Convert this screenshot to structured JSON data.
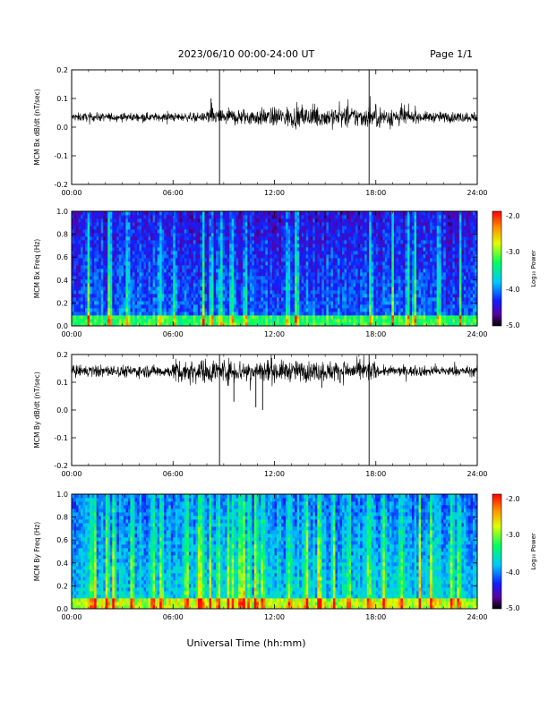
{
  "header": {
    "title": "2023/06/10  00:00-24:00 UT",
    "page": "Page 1/1"
  },
  "footer": {
    "xlabel": "Universal Time (hh:mm)"
  },
  "colorbar": {
    "label": "Log₁₀ Power",
    "ticks": [
      "-2.0",
      "-3.0",
      "-4.0",
      "-5.0"
    ],
    "range": [
      -5,
      -2
    ]
  },
  "chart_data": [
    {
      "type": "line",
      "ylabel": "MCM Bx dB/dt (nT/sec)",
      "xlim": [
        0,
        24
      ],
      "ylim": [
        -0.2,
        0.2
      ],
      "xticks": [
        "00:00",
        "06:00",
        "12:00",
        "18:00",
        "24:00"
      ],
      "yticks": [
        "0.2",
        "0.1",
        "0.0",
        "-0.1",
        "-0.2"
      ],
      "baseline": 0.035,
      "spikes": [
        {
          "x": 8.25,
          "y": 0.1
        },
        {
          "x": 8.75,
          "y": -0.2
        },
        {
          "x": 8.75,
          "y": 0.2
        },
        {
          "x": 17.6,
          "y": -0.2
        },
        {
          "x": 17.6,
          "y": 0.2
        }
      ],
      "activity_windows": [
        {
          "from": 0,
          "to": 8,
          "amp": 0.012
        },
        {
          "from": 8,
          "to": 12,
          "amp": 0.025
        },
        {
          "from": 12,
          "to": 20,
          "amp": 0.03
        },
        {
          "from": 20,
          "to": 24,
          "amp": 0.015
        }
      ]
    },
    {
      "type": "heatmap",
      "ylabel": "MCM Bx Freq (Hz)",
      "xlim": [
        0,
        24
      ],
      "ylim": [
        0,
        1
      ],
      "xticks": [
        "00:00",
        "06:00",
        "12:00",
        "18:00",
        "24:00"
      ],
      "yticks": [
        "1.0",
        "0.8",
        "0.6",
        "0.4",
        "0.2",
        "0.0"
      ],
      "background_level": -4.3,
      "bright_columns": [
        1.0,
        2.2,
        2.3,
        3.3,
        5.2,
        6.1,
        7.8,
        8.3,
        8.8,
        9.5,
        10.3,
        12.8,
        13.3,
        17.7,
        19.0,
        19.9,
        20.3,
        21.7,
        23.0
      ]
    },
    {
      "type": "line",
      "ylabel": "MCM By dB/dt (nT/sec)",
      "xlim": [
        0,
        24
      ],
      "ylim": [
        -0.2,
        0.2
      ],
      "xticks": [
        "00:00",
        "06:00",
        "12:00",
        "18:00",
        "24:00"
      ],
      "yticks": [
        "0.2",
        "0.1",
        "0.0",
        "-0.1",
        "-0.2"
      ],
      "baseline": 0.14,
      "spikes": [
        {
          "x": 8.75,
          "y": -0.2
        },
        {
          "x": 8.75,
          "y": 0.2
        },
        {
          "x": 17.6,
          "y": -0.2
        },
        {
          "x": 17.6,
          "y": 0.2
        },
        {
          "x": 10.9,
          "y": 0.01
        },
        {
          "x": 11.3,
          "y": 0.0
        },
        {
          "x": 9.6,
          "y": 0.03
        },
        {
          "x": 14.8,
          "y": 0.08
        }
      ],
      "activity_windows": [
        {
          "from": 0,
          "to": 6,
          "amp": 0.018
        },
        {
          "from": 6,
          "to": 12,
          "amp": 0.035
        },
        {
          "from": 12,
          "to": 18,
          "amp": 0.03
        },
        {
          "from": 18,
          "to": 24,
          "amp": 0.015
        }
      ]
    },
    {
      "type": "heatmap",
      "ylabel": "MCM By Freq (Hz)",
      "xlim": [
        0,
        24
      ],
      "ylim": [
        0,
        1
      ],
      "xticks": [
        "00:00",
        "06:00",
        "12:00",
        "18:00",
        "24:00"
      ],
      "yticks": [
        "1.0",
        "0.8",
        "0.6",
        "0.4",
        "0.2",
        "0.0"
      ],
      "background_level": -3.9,
      "bright_columns": [
        1.2,
        1.4,
        2.1,
        2.5,
        3.6,
        4.8,
        5.3,
        6.8,
        7.5,
        7.7,
        8.2,
        8.7,
        9.3,
        9.5,
        10.0,
        10.2,
        10.5,
        10.9,
        11.3,
        12.9,
        13.9,
        14.6,
        14.7,
        15.5,
        16.4,
        17.6,
        18.5,
        19.5,
        20.6,
        21.3,
        22.5,
        22.9
      ]
    }
  ]
}
